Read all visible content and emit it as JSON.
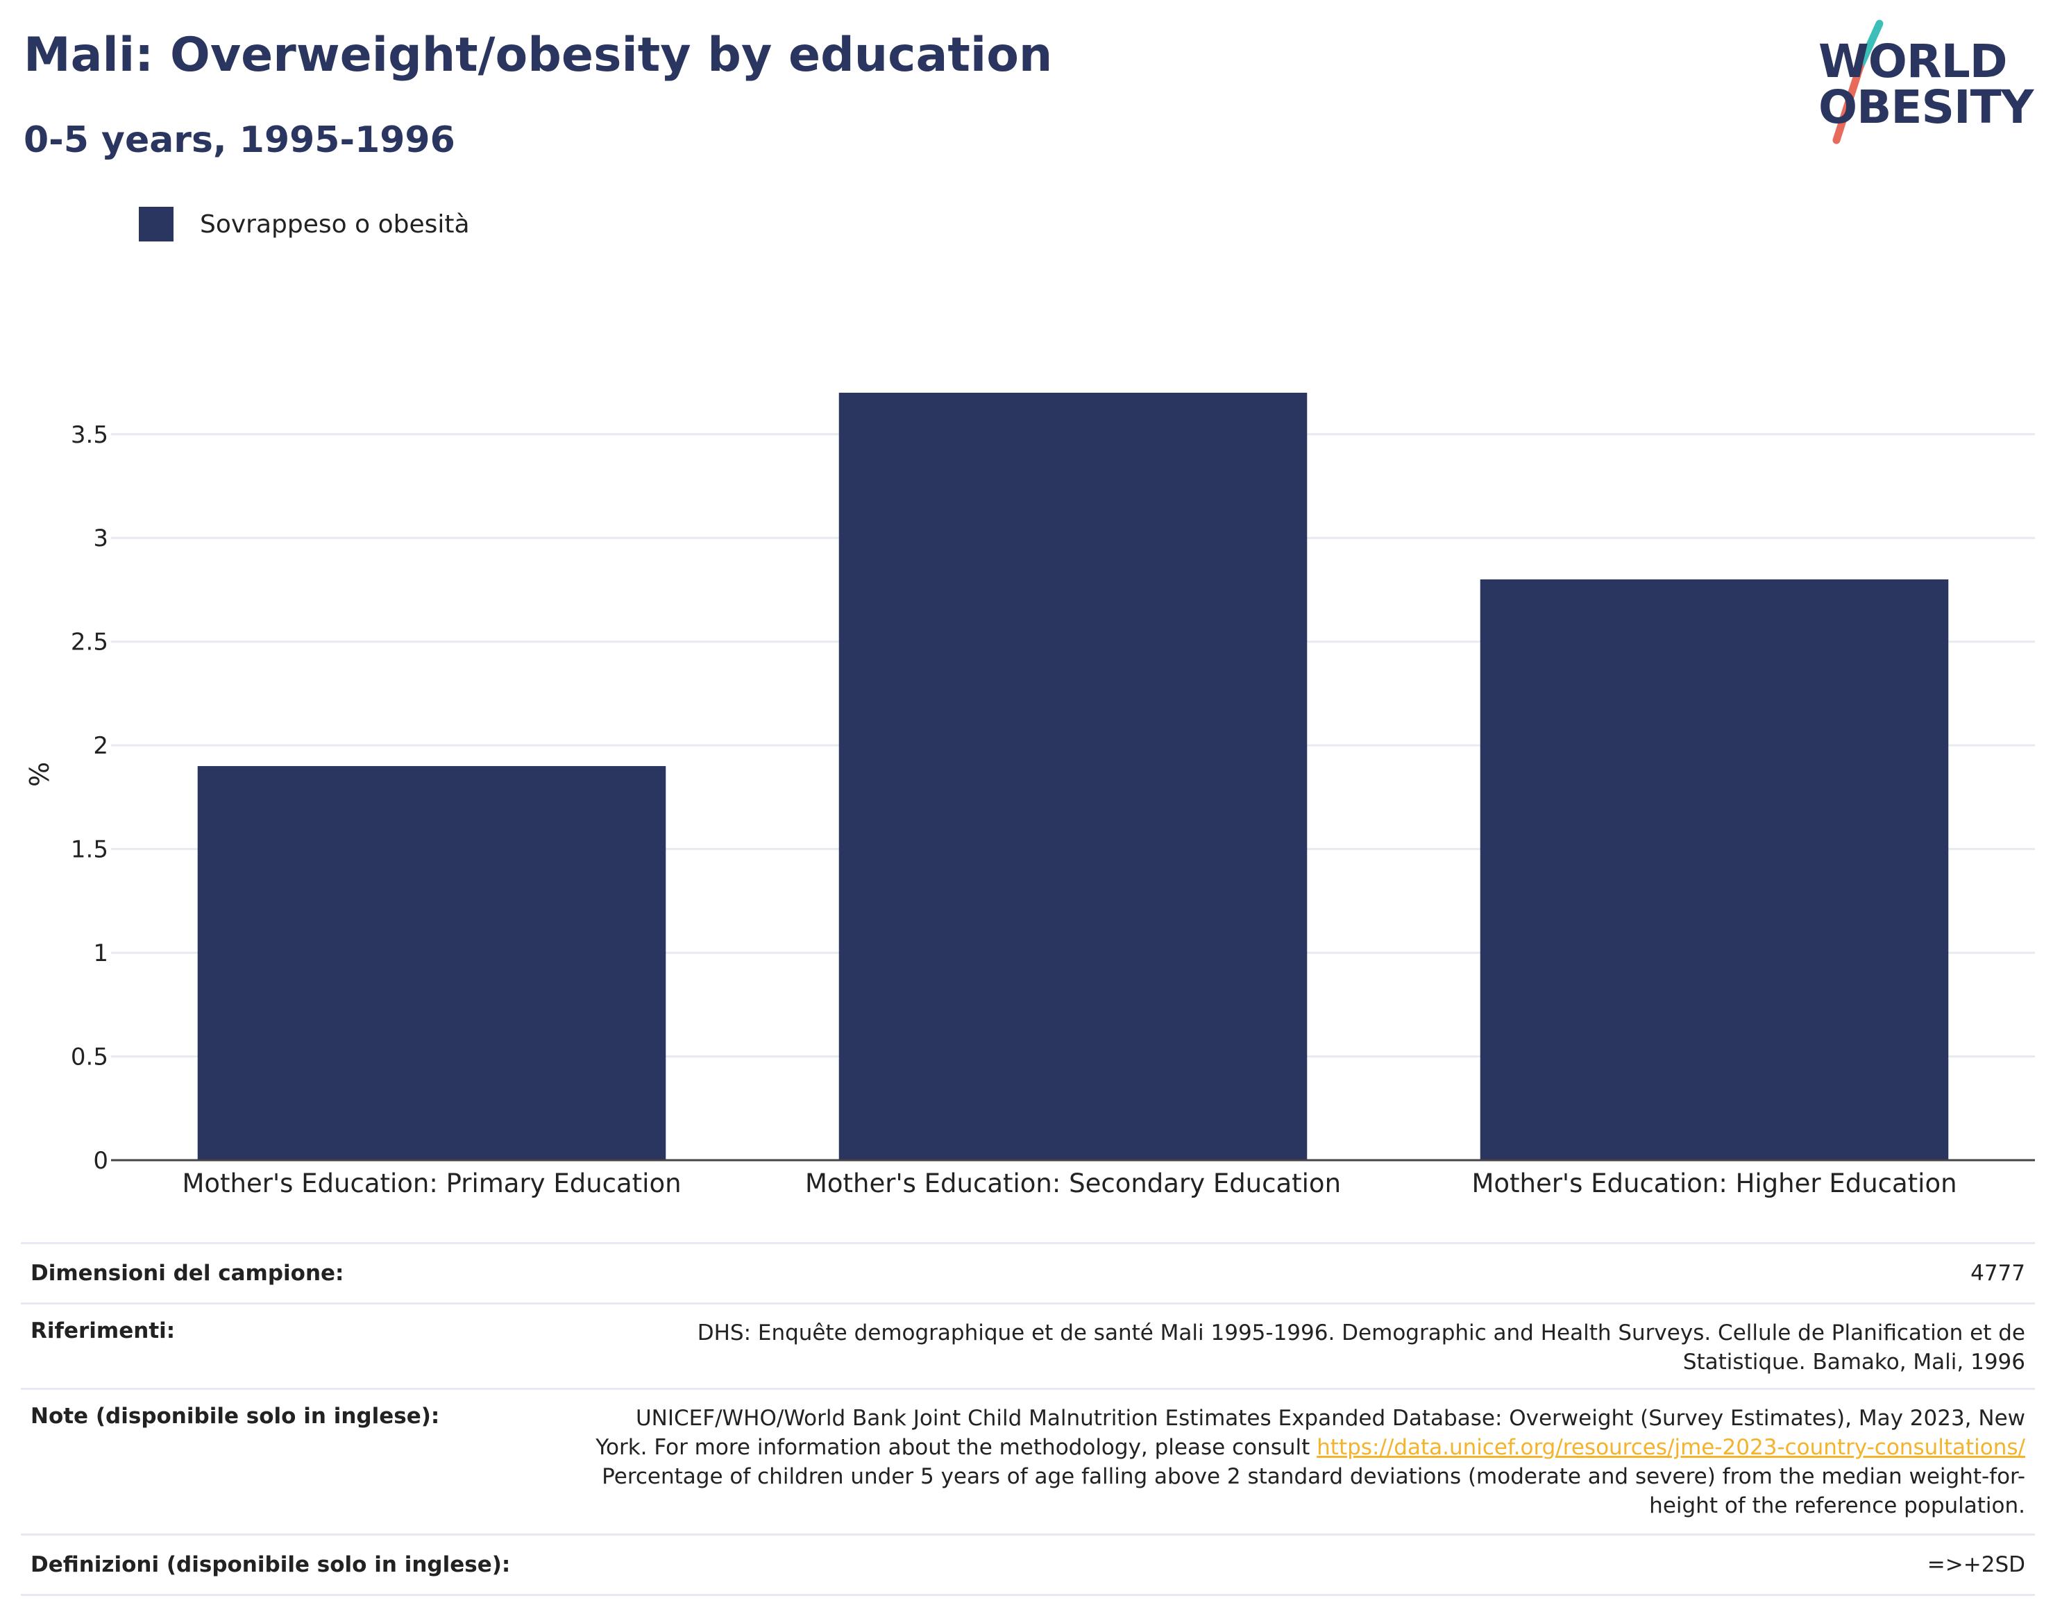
{
  "header": {
    "title": "Mali: Overweight/obesity by education",
    "subtitle": "0-5 years, 1995-1996"
  },
  "logo": {
    "line1": "WORLD",
    "line2": "OBESITY",
    "colors": {
      "text": "#2a3560",
      "slash_top": "#3bbfb8",
      "slash_bottom": "#e86a5a"
    }
  },
  "legend": {
    "label": "Sovrappeso o obesità",
    "color": "#2a3560"
  },
  "chart_data": {
    "type": "bar",
    "categories": [
      "Mother's Education: Primary Education",
      "Mother's Education: Secondary Education",
      "Mother's Education: Higher Education"
    ],
    "series": [
      {
        "name": "Sovrappeso o obesità",
        "values": [
          1.9,
          3.7,
          2.8
        ]
      }
    ],
    "ylabel": "%",
    "ylim": [
      0,
      3.72
    ],
    "yticks": [
      0,
      0.5,
      1,
      1.5,
      2,
      2.5,
      3,
      3.5
    ],
    "ytick_labels": [
      "0",
      "0.5",
      "1",
      "1.5",
      "2",
      "2.5",
      "3",
      "3.5"
    ],
    "grid": true,
    "legend_position": "top-left",
    "bar_color": "#2a3560"
  },
  "meta": {
    "sample_label": "Dimensioni del campione:",
    "sample_value": "4777",
    "ref_label": "Riferimenti:",
    "ref_value": "DHS: Enquête demographique et de santé Mali 1995-1996. Demographic and Health Surveys. Cellule de Planification et de Statistique. Bamako, Mali, 1996",
    "note_label": "Note (disponibile solo in inglese):",
    "note_text_1": "UNICEF/WHO/World Bank Joint Child Malnutrition Estimates Expanded Database: Overweight (Survey Estimates), May 2023, New York. For more information about the methodology, please consult ",
    "note_link": "https://data.unicef.org/resources/jme-2023-country-consultations/",
    "note_text_2": "Percentage of children under 5 years of age falling above 2 standard deviations (moderate and severe) from the median weight-for-height of the reference population.",
    "def_label": "Definizioni (disponibile solo in inglese):",
    "def_value": "=>+2SD"
  }
}
